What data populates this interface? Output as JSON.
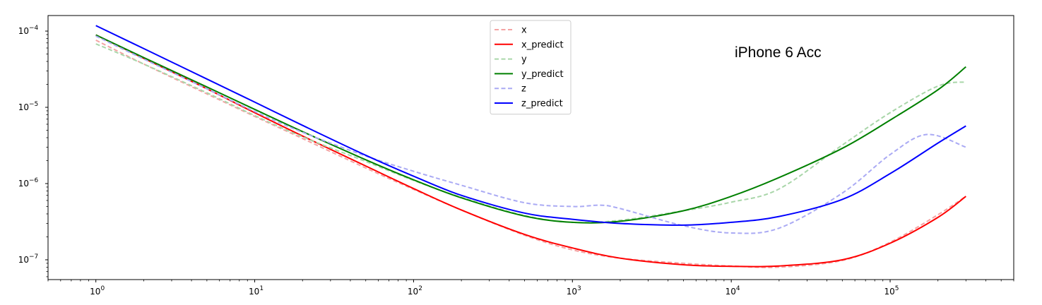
{
  "chart_data": {
    "type": "line",
    "title": "",
    "xlabel": "",
    "ylabel": "",
    "x_scale": "log",
    "y_scale": "log",
    "xlim": [
      0.5,
      600000
    ],
    "ylim": [
      5.5e-08,
      0.00016
    ],
    "x_tick_values": [
      1,
      10,
      100,
      1000,
      10000,
      100000
    ],
    "y_tick_values": [
      1e-07,
      1e-06,
      1e-05,
      0.0001
    ],
    "x_tick_labels": [
      {
        "base": "10",
        "exp": "0"
      },
      {
        "base": "10",
        "exp": "1"
      },
      {
        "base": "10",
        "exp": "2"
      },
      {
        "base": "10",
        "exp": "3"
      },
      {
        "base": "10",
        "exp": "4"
      },
      {
        "base": "10",
        "exp": "5"
      }
    ],
    "y_tick_labels": [
      {
        "base": "10",
        "exp": "−7"
      },
      {
        "base": "10",
        "exp": "−6"
      },
      {
        "base": "10",
        "exp": "−5"
      },
      {
        "base": "10",
        "exp": "−4"
      }
    ],
    "grid": false,
    "legend_position": "top-center",
    "annotation": "iPhone 6 Acc",
    "series": [
      {
        "name": "x",
        "color": "#f4a3a3",
        "style": "dashed",
        "x": [
          1,
          2,
          5,
          10,
          20,
          50,
          100,
          200,
          500,
          1000,
          2000,
          5000,
          10000,
          20000,
          50000,
          100000,
          200000,
          300000
        ],
        "y": [
          7.6e-05,
          3.7e-05,
          1.5e-05,
          7.6e-06,
          3.9e-06,
          1.6e-06,
          8.4e-07,
          4.5e-07,
          2.1e-07,
          1.35e-07,
          1.05e-07,
          9e-08,
          8.3e-08,
          8e-08,
          9.8e-08,
          1.7e-07,
          3.9e-07,
          6.8e-07
        ]
      },
      {
        "name": "x_predict",
        "color": "#ff0000",
        "style": "solid",
        "x": [
          1,
          2,
          5,
          10,
          20,
          50,
          100,
          200,
          500,
          1000,
          2000,
          5000,
          10000,
          20000,
          50000,
          100000,
          200000,
          300000
        ],
        "y": [
          8.9e-05,
          4.4e-05,
          1.75e-05,
          8.5e-06,
          4.2e-06,
          1.7e-06,
          8.6e-07,
          4.5e-07,
          2.15e-07,
          1.43e-07,
          1.05e-07,
          8.6e-08,
          8.2e-08,
          8.3e-08,
          1e-07,
          1.65e-07,
          3.6e-07,
          6.8e-07
        ]
      },
      {
        "name": "y",
        "color": "#a9d6a9",
        "style": "dashed",
        "x": [
          1,
          2,
          5,
          10,
          20,
          50,
          100,
          200,
          500,
          1000,
          2000,
          5000,
          10000,
          20000,
          50000,
          100000,
          200000,
          300000
        ],
        "y": [
          6.8e-05,
          3.7e-05,
          1.55e-05,
          7.8e-06,
          4.1e-06,
          1.95e-06,
          1.1e-06,
          6.6e-07,
          3.8e-07,
          3.1e-07,
          3.3e-07,
          4.4e-07,
          5.7e-07,
          8.5e-07,
          3.2e-06,
          8.5e-06,
          1.9e-05,
          2.15e-05
        ]
      },
      {
        "name": "y_predict",
        "color": "#008000",
        "style": "solid",
        "x": [
          1,
          2,
          5,
          10,
          20,
          50,
          100,
          200,
          500,
          1000,
          2000,
          5000,
          10000,
          20000,
          50000,
          100000,
          200000,
          300000
        ],
        "y": [
          8.9e-05,
          4.5e-05,
          1.85e-05,
          9.4e-06,
          4.8e-06,
          2.05e-06,
          1.12e-06,
          6.5e-07,
          3.75e-07,
          3.1e-07,
          3.2e-07,
          4.4e-07,
          6.8e-07,
          1.2e-06,
          2.9e-06,
          6.8e-06,
          1.7e-05,
          3.4e-05
        ]
      },
      {
        "name": "z",
        "color": "#aaaaf4",
        "style": "dashed",
        "x": [
          1,
          2,
          5,
          10,
          20,
          50,
          100,
          200,
          500,
          1000,
          1500,
          2000,
          5000,
          10000,
          20000,
          50000,
          100000,
          170000,
          300000
        ],
        "y": [
          8.6e-05,
          4.3e-05,
          1.75e-05,
          8.8e-06,
          4.7e-06,
          2.3e-06,
          1.45e-06,
          9.5e-07,
          5.6e-07,
          5e-07,
          5.2e-07,
          4.7e-07,
          2.8e-07,
          2.25e-07,
          2.6e-07,
          7.5e-07,
          2.4e-06,
          4.4e-06,
          3e-06
        ]
      },
      {
        "name": "z_predict",
        "color": "#0000ff",
        "style": "solid",
        "x": [
          1,
          2,
          5,
          10,
          20,
          50,
          100,
          200,
          500,
          1000,
          2000,
          5000,
          10000,
          20000,
          50000,
          100000,
          200000,
          300000
        ],
        "y": [
          0.000118,
          5.9e-05,
          2.35e-05,
          1.17e-05,
          5.8e-06,
          2.35e-06,
          1.25e-06,
          7e-07,
          4.1e-07,
          3.4e-07,
          3e-07,
          2.85e-07,
          3.1e-07,
          3.7e-07,
          6.2e-07,
          1.35e-06,
          3.4e-06,
          5.7e-06
        ]
      }
    ]
  }
}
